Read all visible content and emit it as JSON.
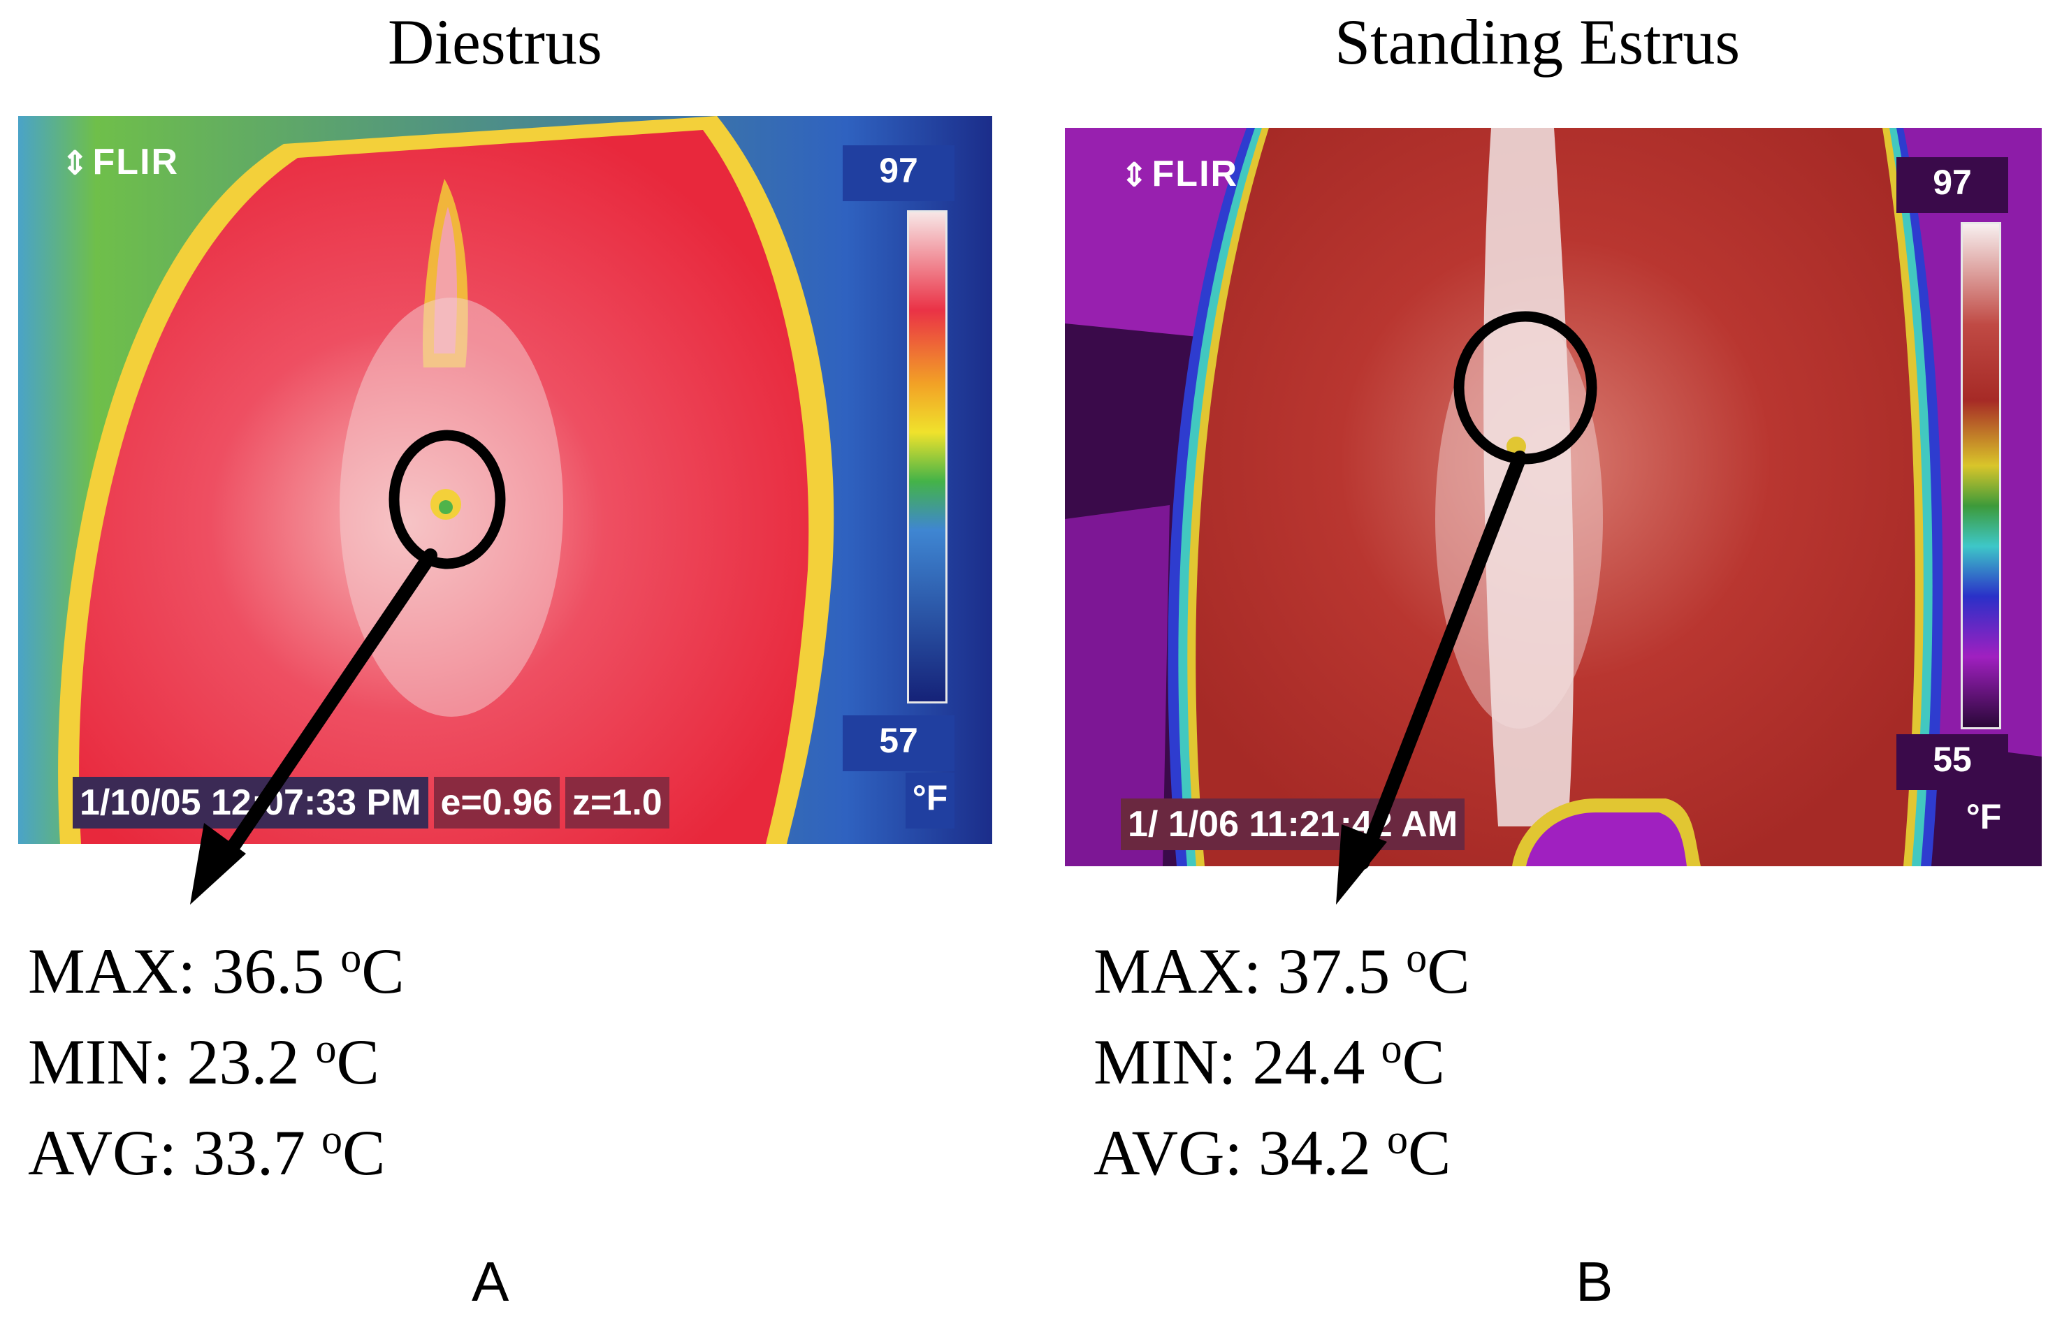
{
  "panel_a": {
    "title": "Diestrus",
    "logo": "FLIR",
    "scale_max": "97",
    "scale_min": "57",
    "unit": "°F",
    "info": [
      "1/10/05 12:07:33 PM",
      "e=0.96",
      "z=1.0"
    ],
    "stats": [
      {
        "label": "MAX:",
        "value": "36.5",
        "deg": "o",
        "unit": "C"
      },
      {
        "label": "MIN:",
        "value": "23.2",
        "deg": "o",
        "unit": "C"
      },
      {
        "label": "AVG:",
        "value": "33.7",
        "deg": "o",
        "unit": "C"
      }
    ],
    "panel_label": "A",
    "palette": [
      "#1e2d8f",
      "#3d7fd0",
      "#3bb04b",
      "#f3e02a",
      "#f29a22",
      "#e8283c",
      "#f4606e",
      "#f7d6d6"
    ]
  },
  "panel_b": {
    "title": "Standing Estrus",
    "logo": "FLIR",
    "scale_max": "97",
    "scale_min": "55",
    "unit": "°F",
    "info": [
      "1/ 1/06 11:21:42 AM"
    ],
    "stats": [
      {
        "label": "MAX:",
        "value": "37.5",
        "deg": "o",
        "unit": "C"
      },
      {
        "label": "MIN:",
        "value": "24.4",
        "deg": "o",
        "unit": "C"
      },
      {
        "label": "AVG:",
        "value": "34.2",
        "deg": "o",
        "unit": "C"
      }
    ],
    "panel_label": "B",
    "palette": [
      "#2a0838",
      "#a020c0",
      "#2a30c8",
      "#3ec7c8",
      "#3d9a3a",
      "#d9c52a",
      "#b8302c",
      "#f3eaea"
    ]
  }
}
